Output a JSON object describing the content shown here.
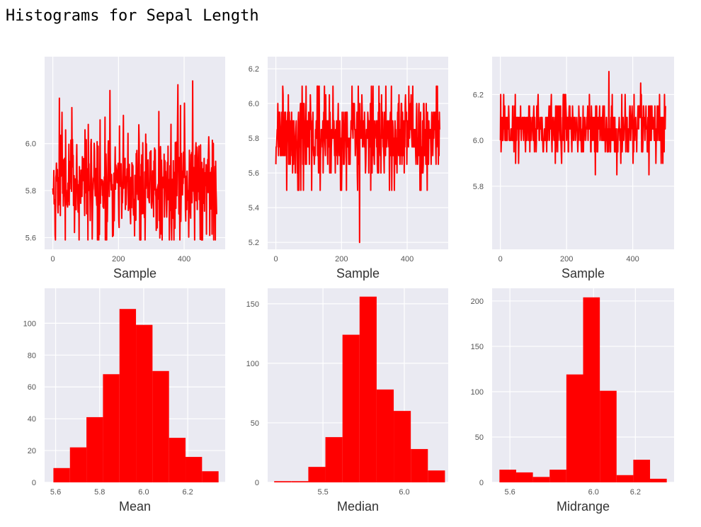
{
  "page": {
    "title": "Histograms for Sepal Length"
  },
  "chart_data": [
    {
      "type": "line",
      "name": "mean-trace",
      "xlabel": "Sample",
      "ylabel": "",
      "xlim": [
        -25,
        525
      ],
      "ylim": [
        5.55,
        6.37
      ],
      "xticks": [
        0,
        200,
        400
      ],
      "yticks": [
        5.6,
        5.8,
        6.0
      ],
      "ytick_labels": [
        "5.6",
        "5.8",
        "6.0"
      ],
      "color": "#ff0000",
      "n": 500,
      "center": 5.84,
      "spread": 0.11,
      "seed": 11,
      "y_min": 5.59,
      "y_max": 6.34
    },
    {
      "type": "line",
      "name": "median-trace",
      "xlabel": "Sample",
      "ylabel": "",
      "xlim": [
        -25,
        525
      ],
      "ylim": [
        5.16,
        6.27
      ],
      "xticks": [
        0,
        200,
        400
      ],
      "yticks": [
        5.2,
        5.4,
        5.6,
        5.8,
        6.0,
        6.2
      ],
      "ytick_labels": [
        "5.2",
        "5.4",
        "5.6",
        "5.8",
        "6.0",
        "6.2"
      ],
      "color": "#ff0000",
      "n": 500,
      "center": 5.8,
      "spread": 0.12,
      "seed": 23,
      "y_min": 5.2,
      "y_max": 6.25,
      "levels": [
        5.5,
        5.6,
        5.65,
        5.7,
        5.75,
        5.8,
        5.85,
        5.9,
        5.95,
        6.0,
        6.05,
        6.1
      ]
    },
    {
      "type": "line",
      "name": "midrange-trace",
      "xlabel": "Sample",
      "ylabel": "",
      "xlim": [
        -25,
        525
      ],
      "ylim": [
        5.525,
        6.365
      ],
      "xticks": [
        0,
        200,
        400
      ],
      "yticks": [
        5.8,
        6.0,
        6.2
      ],
      "ytick_labels": [
        "5.8",
        "6.0",
        "6.2"
      ],
      "color": "#ff0000",
      "n": 500,
      "center": 6.05,
      "spread": 0.06,
      "seed": 37,
      "y_min": 5.55,
      "y_max": 6.35,
      "levels": [
        5.6,
        5.65,
        5.75,
        5.8,
        5.85,
        5.9,
        5.95,
        6.0,
        6.05,
        6.1,
        6.15,
        6.2,
        6.25,
        6.3,
        6.35
      ]
    },
    {
      "type": "bar",
      "name": "mean-histogram",
      "xlabel": "Mean",
      "ylabel": "",
      "xlim": [
        5.55,
        6.37
      ],
      "ylim": [
        0,
        122
      ],
      "xticks": [
        5.6,
        5.8,
        6.0,
        6.2
      ],
      "xtick_labels": [
        "5.6",
        "5.8",
        "6.0",
        "6.2"
      ],
      "yticks": [
        0,
        20,
        40,
        60,
        80,
        100
      ],
      "ytick_labels": [
        "0",
        "20",
        "40",
        "60",
        "80",
        "100"
      ],
      "color": "#ff0000",
      "bins": [
        5.59,
        5.665,
        5.74,
        5.815,
        5.89,
        5.965,
        6.04,
        6.115,
        6.19,
        6.265,
        6.34
      ],
      "counts": [
        9,
        22,
        41,
        68,
        109,
        99,
        70,
        28,
        16,
        7
      ]
    },
    {
      "type": "bar",
      "name": "median-histogram",
      "xlabel": "Median",
      "ylabel": "",
      "xlim": [
        5.16,
        6.27
      ],
      "ylim": [
        0,
        163
      ],
      "xticks": [
        5.5,
        6.0
      ],
      "xtick_labels": [
        "5.5",
        "6.0"
      ],
      "yticks": [
        0,
        50,
        100,
        150
      ],
      "ytick_labels": [
        "0",
        "50",
        "100",
        "150"
      ],
      "color": "#ff0000",
      "bins": [
        5.2,
        5.305,
        5.41,
        5.515,
        5.62,
        5.725,
        5.83,
        5.935,
        6.04,
        6.145,
        6.25
      ],
      "counts": [
        1,
        1,
        13,
        38,
        124,
        156,
        78,
        60,
        28,
        10
      ]
    },
    {
      "type": "bar",
      "name": "midrange-histogram",
      "xlabel": "Midrange",
      "ylabel": "",
      "xlim": [
        5.515,
        6.385
      ],
      "ylim": [
        0,
        214
      ],
      "xticks": [
        5.6,
        6.0,
        6.2
      ],
      "xtick_labels": [
        "5.6",
        "6.0",
        "6.2"
      ],
      "yticks": [
        0,
        50,
        100,
        150,
        200
      ],
      "ytick_labels": [
        "0",
        "50",
        "100",
        "150",
        "200"
      ],
      "color": "#ff0000",
      "bins": [
        5.55,
        5.63,
        5.71,
        5.79,
        5.87,
        5.95,
        6.03,
        6.11,
        6.19,
        6.27,
        6.35
      ],
      "counts": [
        14,
        11,
        6,
        14,
        119,
        204,
        101,
        8,
        25,
        4
      ]
    }
  ]
}
